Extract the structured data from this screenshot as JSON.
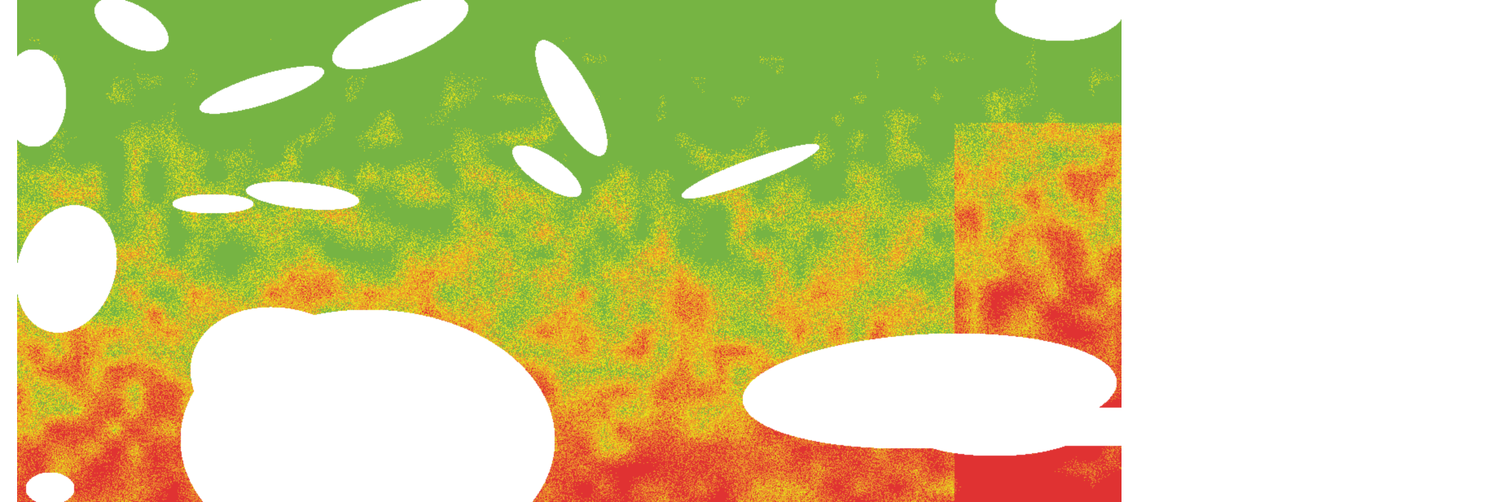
{
  "map": {
    "palette": {
      "low": "#76b443",
      "moderate": "#e4e01b",
      "high": "#ec922c",
      "very_high": "#e03232",
      "no_data": "#ffffff"
    }
  }
}
